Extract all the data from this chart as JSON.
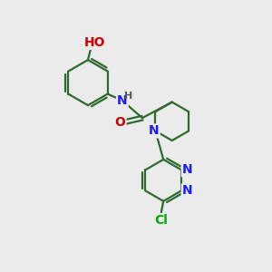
{
  "background_color": "#ebebeb",
  "bond_color": "#2d6b2d",
  "bond_width": 1.6,
  "atom_colors": {
    "N": "#1a1aff",
    "O": "#cc0000",
    "Cl": "#00aa00",
    "H": "#555555"
  }
}
